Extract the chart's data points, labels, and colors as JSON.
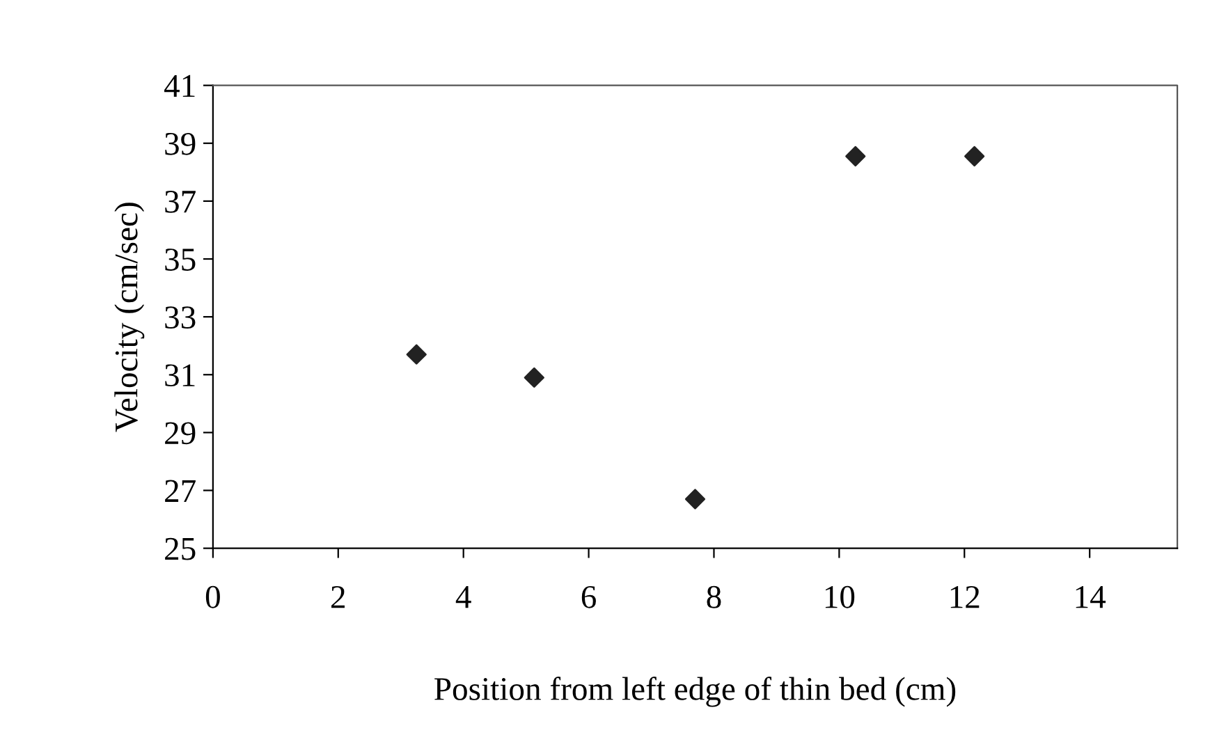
{
  "chart_data": {
    "type": "scatter",
    "xlabel": "Position from left edge of thin bed (cm)",
    "ylabel": "Velocity (cm/sec)",
    "x": [
      3.25,
      5.13,
      7.7,
      10.26,
      12.16
    ],
    "series": [
      {
        "color": "#222222",
        "values": [
          31.7,
          30.9,
          26.7,
          38.55,
          38.55
        ]
      }
    ],
    "xlim": [
      0,
      15.4
    ],
    "xticks": [
      0,
      2,
      4,
      6,
      8,
      10,
      12,
      14
    ],
    "ylim": [
      25,
      41
    ],
    "yticks": [
      25,
      27,
      29,
      31,
      33,
      35,
      37,
      39,
      41
    ],
    "marker": "diamond",
    "grid": false,
    "legend": false
  }
}
